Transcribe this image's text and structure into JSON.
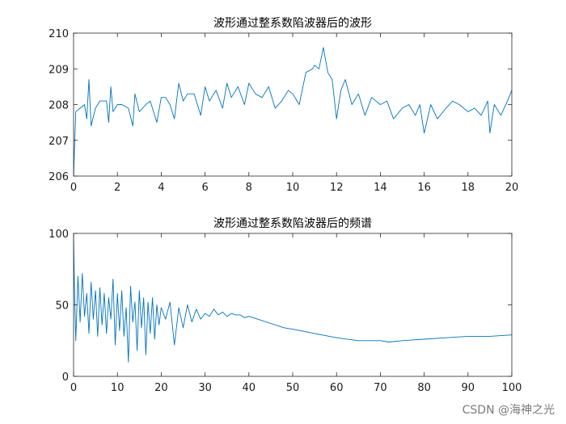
{
  "chart_data": [
    {
      "type": "line",
      "title": "波形通过整系数陷波器后的波形",
      "xlabel": "",
      "ylabel": "",
      "xlim": [
        0,
        20
      ],
      "ylim": [
        206,
        210
      ],
      "x_ticks": [
        0,
        2,
        4,
        6,
        8,
        10,
        12,
        14,
        16,
        18,
        20
      ],
      "y_ticks": [
        206,
        207,
        208,
        209,
        210
      ],
      "color": "#0072bd",
      "grid": false,
      "series": [
        {
          "x": [
            0,
            0.1,
            0.3,
            0.5,
            0.6,
            0.7,
            0.8,
            1.0,
            1.2,
            1.5,
            1.6,
            1.7,
            1.8,
            2.0,
            2.2,
            2.5,
            2.7,
            2.8,
            3.0,
            3.3,
            3.5,
            3.8,
            4.0,
            4.2,
            4.4,
            4.6,
            4.8,
            5.0,
            5.2,
            5.5,
            5.8,
            6.0,
            6.2,
            6.5,
            6.8,
            7.0,
            7.2,
            7.5,
            7.8,
            8.0,
            8.3,
            8.6,
            8.9,
            9.2,
            9.5,
            9.8,
            10.0,
            10.3,
            10.6,
            10.9,
            11.0,
            11.2,
            11.4,
            11.6,
            11.8,
            12.0,
            12.2,
            12.4,
            12.7,
            13.0,
            13.3,
            13.6,
            14.0,
            14.3,
            14.6,
            15.0,
            15.3,
            15.6,
            15.8,
            16.0,
            16.3,
            16.6,
            17.0,
            17.3,
            17.6,
            18.0,
            18.3,
            18.6,
            18.9,
            19.0,
            19.2,
            19.5,
            19.8,
            20.0
          ],
          "y": [
            206.0,
            207.8,
            207.9,
            208.0,
            207.6,
            208.7,
            207.4,
            207.9,
            208.1,
            208.1,
            207.5,
            208.5,
            207.8,
            208.0,
            208.0,
            207.9,
            207.4,
            208.3,
            207.8,
            208.0,
            208.1,
            207.5,
            208.2,
            208.2,
            208.0,
            207.6,
            208.6,
            208.1,
            208.3,
            208.3,
            207.7,
            208.5,
            208.1,
            208.4,
            207.9,
            208.6,
            208.2,
            208.5,
            208.0,
            208.6,
            208.3,
            208.2,
            208.5,
            207.9,
            208.1,
            208.4,
            208.3,
            208.0,
            208.9,
            209.0,
            209.1,
            209.0,
            209.6,
            208.9,
            208.7,
            207.6,
            208.4,
            208.7,
            208.0,
            208.3,
            207.7,
            208.2,
            208.0,
            208.1,
            207.6,
            207.9,
            208.0,
            207.7,
            208.0,
            207.2,
            208.0,
            207.6,
            207.9,
            208.1,
            208.0,
            207.8,
            207.9,
            207.7,
            208.1,
            207.2,
            208.0,
            207.7,
            208.1,
            208.4
          ]
        }
      ]
    },
    {
      "type": "line",
      "title": "波形通过整系数陷波器后的频谱",
      "xlabel": "",
      "ylabel": "",
      "xlim": [
        0,
        100
      ],
      "ylim": [
        0,
        100
      ],
      "x_ticks": [
        0,
        10,
        20,
        30,
        40,
        50,
        60,
        70,
        80,
        90,
        100
      ],
      "y_ticks": [
        0,
        50,
        100
      ],
      "color": "#0072bd",
      "grid": false,
      "series": [
        {
          "x": [
            0,
            0.2,
            0.5,
            1,
            1.5,
            2,
            2.5,
            3,
            3.5,
            4,
            4.5,
            5,
            5.5,
            6,
            6.5,
            7,
            7.5,
            8,
            8.5,
            9,
            9.5,
            10,
            10.5,
            11,
            11.5,
            12,
            12.5,
            13,
            13.5,
            14,
            14.5,
            15,
            15.5,
            16,
            16.5,
            17,
            17.5,
            18,
            18.5,
            19,
            19.5,
            20,
            21,
            22,
            23,
            24,
            25,
            26,
            27,
            28,
            29,
            30,
            31,
            32,
            33,
            34,
            35,
            36,
            37,
            38,
            39,
            40,
            42,
            45,
            48,
            50,
            55,
            60,
            65,
            70,
            72,
            75,
            80,
            85,
            90,
            95,
            100
          ],
          "y": [
            98,
            62,
            25,
            70,
            38,
            72,
            42,
            58,
            30,
            66,
            40,
            60,
            28,
            62,
            36,
            58,
            30,
            55,
            40,
            68,
            22,
            58,
            32,
            60,
            28,
            48,
            10,
            63,
            38,
            52,
            18,
            60,
            34,
            55,
            15,
            52,
            30,
            55,
            26,
            50,
            36,
            48,
            40,
            52,
            22,
            48,
            34,
            50,
            38,
            47,
            40,
            44,
            42,
            47,
            43,
            45,
            42,
            44,
            43,
            43,
            41,
            42,
            40,
            37,
            34,
            33,
            30,
            27,
            25,
            25,
            24,
            25,
            26,
            27,
            28,
            28,
            29
          ]
        }
      ]
    }
  ],
  "watermark": "CSDN @海神之光"
}
